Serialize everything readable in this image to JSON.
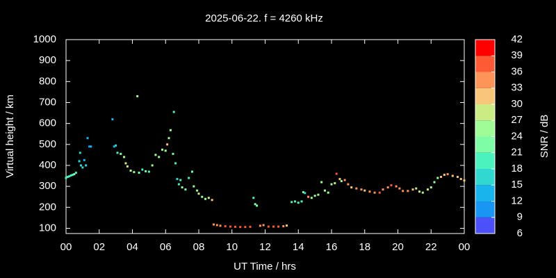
{
  "chart_data": {
    "type": "scatter",
    "title": "2025-06-22. f = 4260 kHz",
    "xlabel": "UT Time / hrs",
    "ylabel": "Virtual height / km",
    "colorbar_label": "SNR / dB",
    "xlim": [
      0,
      24
    ],
    "xticks": [
      {
        "value": 0,
        "label": "00"
      },
      {
        "value": 2,
        "label": "02"
      },
      {
        "value": 4,
        "label": "04"
      },
      {
        "value": 6,
        "label": "06"
      },
      {
        "value": 8,
        "label": "08"
      },
      10,
      12,
      14,
      16,
      18,
      20,
      22,
      {
        "value": 24,
        "label": "00"
      }
    ],
    "ylim": [
      75,
      1000
    ],
    "yticks": [
      100,
      200,
      300,
      400,
      500,
      600,
      700,
      800,
      900,
      1000
    ],
    "zlim": [
      6,
      42
    ],
    "zticks": [
      6,
      9,
      12,
      15,
      18,
      21,
      24,
      27,
      30,
      33,
      36,
      39,
      42
    ],
    "colors": [
      "#8000ff",
      "#4c50fb",
      "#1996f3",
      "#19b4eb",
      "#31d8d0",
      "#4cf2be",
      "#7ffca6",
      "#a0fc96",
      "#cbec85",
      "#f7c67a",
      "#ff9458",
      "#ff5a36",
      "#ff0000"
    ],
    "x": [
      0.0,
      0.1,
      0.2,
      0.3,
      0.4,
      0.5,
      0.6,
      0.8,
      0.85,
      0.9,
      1.0,
      1.1,
      1.2,
      1.3,
      1.4,
      1.5,
      2.8,
      2.9,
      3.0,
      3.1,
      3.3,
      3.5,
      3.6,
      3.7,
      3.9,
      4.1,
      4.3,
      4.4,
      4.6,
      4.8,
      5.0,
      5.2,
      5.4,
      5.6,
      5.8,
      6.0,
      6.1,
      6.2,
      6.3,
      6.45,
      6.5,
      6.6,
      6.7,
      6.8,
      6.9,
      7.0,
      7.2,
      7.4,
      7.6,
      7.7,
      7.9,
      8.0,
      8.2,
      8.4,
      8.6,
      8.8,
      8.9,
      9.1,
      9.3,
      9.6,
      9.9,
      10.2,
      10.5,
      10.8,
      11.1,
      11.3,
      11.4,
      11.5,
      11.7,
      11.9,
      12.2,
      12.5,
      12.8,
      13.1,
      13.3,
      13.6,
      13.8,
      14.0,
      14.2,
      14.3,
      14.4,
      14.6,
      14.8,
      15.0,
      15.2,
      15.4,
      15.6,
      15.8,
      16.0,
      16.2,
      16.3,
      16.5,
      16.6,
      16.8,
      17.0,
      17.2,
      17.5,
      17.8,
      18.0,
      18.3,
      18.6,
      18.9,
      19.1,
      19.4,
      19.6,
      19.9,
      20.1,
      20.3,
      20.6,
      20.9,
      21.1,
      21.3,
      21.5,
      21.8,
      22.0,
      22.2,
      22.4,
      22.6,
      22.8,
      23.0,
      23.3,
      23.6,
      23.8,
      24.0
    ],
    "values": [
      340,
      345,
      348,
      352,
      355,
      358,
      365,
      420,
      460,
      400,
      390,
      425,
      400,
      530,
      490,
      490,
      620,
      490,
      495,
      460,
      455,
      440,
      410,
      395,
      375,
      368,
      730,
      365,
      380,
      372,
      370,
      400,
      450,
      440,
      475,
      470,
      500,
      530,
      568,
      455,
      655,
      410,
      335,
      310,
      330,
      295,
      285,
      340,
      370,
      300,
      280,
      265,
      250,
      240,
      245,
      235,
      118,
      115,
      112,
      110,
      108,
      107,
      106,
      106,
      107,
      245,
      215,
      208,
      112,
      115,
      108,
      108,
      108,
      110,
      113,
      225,
      228,
      222,
      228,
      272,
      268,
      250,
      245,
      255,
      260,
      320,
      280,
      270,
      310,
      315,
      360,
      335,
      325,
      330,
      310,
      295,
      290,
      285,
      280,
      275,
      270,
      270,
      285,
      295,
      305,
      300,
      290,
      278,
      278,
      285,
      290,
      275,
      270,
      285,
      295,
      320,
      340,
      345,
      355,
      358,
      350,
      345,
      335,
      328
    ],
    "snr": [
      19,
      19,
      20,
      19,
      20,
      21,
      20,
      17,
      16,
      16,
      15,
      14,
      15,
      13,
      11,
      12,
      12,
      13,
      15,
      19,
      22,
      24,
      28,
      29,
      26,
      24,
      25,
      21,
      20,
      22,
      19,
      24,
      26,
      25,
      24,
      25,
      31,
      24,
      25,
      21,
      20,
      18,
      17,
      19,
      18,
      24,
      23,
      20,
      23,
      24,
      26,
      27,
      25,
      24,
      28,
      31,
      33,
      34,
      35,
      36,
      36,
      38,
      38,
      37,
      36,
      19,
      22,
      21,
      34,
      35,
      37,
      37,
      36,
      35,
      32,
      20,
      19,
      18,
      20,
      23,
      15,
      34,
      25,
      26,
      24,
      26,
      24,
      24,
      26,
      27,
      38,
      30,
      25,
      33,
      33,
      32,
      34,
      33,
      32,
      34,
      35,
      36,
      34,
      34,
      36,
      35,
      34,
      35,
      34,
      30,
      28,
      27,
      25,
      27,
      26,
      24,
      25,
      30,
      32,
      33,
      32,
      31,
      30,
      31
    ]
  }
}
